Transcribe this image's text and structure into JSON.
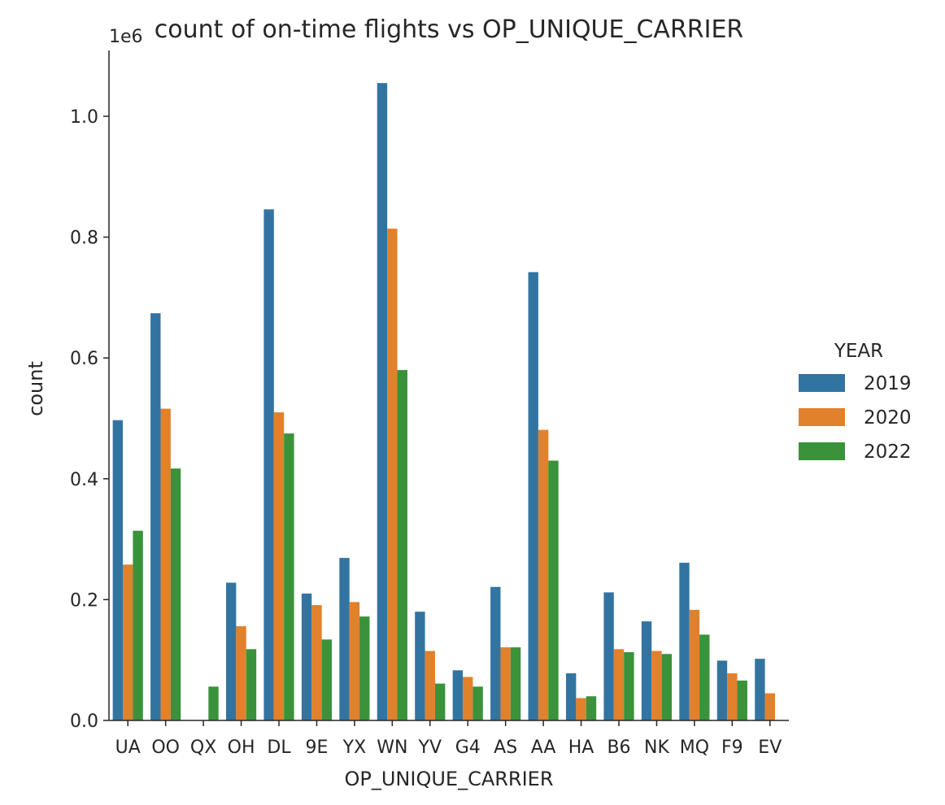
{
  "chart_data": {
    "type": "bar",
    "title": "count of on-time flights vs OP_UNIQUE_CARRIER",
    "xlabel": "OP_UNIQUE_CARRIER",
    "ylabel": "count",
    "y_offset_label": "1e6",
    "ylim": [
      0,
      1.1
    ],
    "yticks": [
      "0.0",
      "0.2",
      "0.4",
      "0.6",
      "0.8",
      "1.0"
    ],
    "categories": [
      "UA",
      "OO",
      "QX",
      "OH",
      "DL",
      "9E",
      "YX",
      "WN",
      "YV",
      "G4",
      "AS",
      "AA",
      "HA",
      "B6",
      "NK",
      "MQ",
      "F9",
      "EV"
    ],
    "legend": {
      "title": "YEAR",
      "position": "center-right"
    },
    "series": [
      {
        "name": "2019",
        "color": "#3274a1",
        "values": [
          0.497,
          0.674,
          0,
          0.228,
          0.846,
          0.21,
          0.269,
          1.055,
          0.18,
          0.083,
          0.221,
          0.742,
          0.078,
          0.212,
          0.164,
          0.261,
          0.099,
          0.102
        ]
      },
      {
        "name": "2020",
        "color": "#e1812c",
        "values": [
          0.258,
          0.516,
          0,
          0.156,
          0.51,
          0.191,
          0.196,
          0.814,
          0.115,
          0.072,
          0.121,
          0.481,
          0.037,
          0.118,
          0.115,
          0.183,
          0.078,
          0.045
        ]
      },
      {
        "name": "2022",
        "color": "#3a923a",
        "values": [
          0.314,
          0.417,
          0.056,
          0.118,
          0.475,
          0.134,
          0.172,
          0.58,
          0.061,
          0.056,
          0.121,
          0.43,
          0.04,
          0.113,
          0.11,
          0.142,
          0.066,
          0
        ]
      }
    ]
  }
}
